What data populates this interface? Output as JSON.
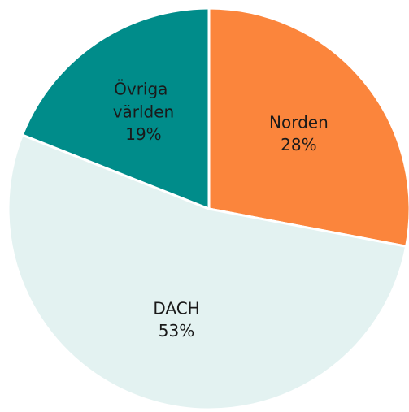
{
  "chart_data": {
    "type": "pie",
    "categories": [
      "Norden",
      "DACH",
      "Övriga världen"
    ],
    "values": [
      28,
      53,
      19
    ],
    "value_labels": [
      "28%",
      "53%",
      "19%"
    ],
    "colors": [
      "#fb853c",
      "#e3f2f1",
      "#008c8a"
    ]
  }
}
